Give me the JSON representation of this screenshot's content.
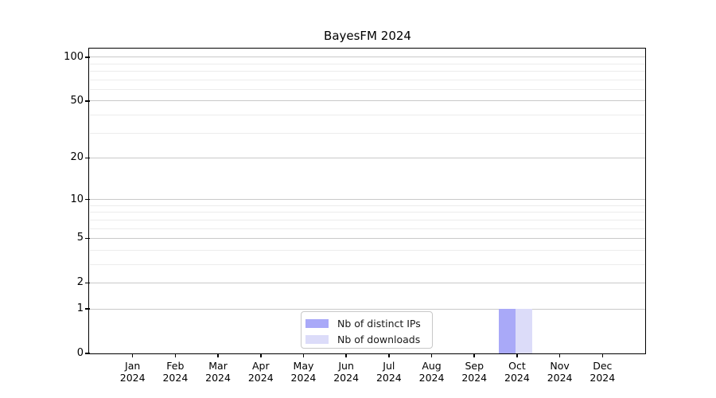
{
  "chart_data": {
    "type": "bar",
    "title": "BayesFM 2024",
    "categories": [
      "Jan",
      "Feb",
      "Mar",
      "Apr",
      "May",
      "Jun",
      "Jul",
      "Aug",
      "Sep",
      "Oct",
      "Nov",
      "Dec"
    ],
    "x_tick_year": "2024",
    "series": [
      {
        "name": "Nb of distinct IPs",
        "color": "#a9a9f8",
        "values": [
          0,
          0,
          0,
          0,
          0,
          0,
          0,
          0,
          0,
          1,
          0,
          0
        ]
      },
      {
        "name": "Nb of downloads",
        "color": "#dcdcf9",
        "values": [
          0,
          0,
          0,
          0,
          0,
          0,
          0,
          0,
          0,
          1,
          0,
          0
        ]
      }
    ],
    "xlabel": "",
    "ylabel": "",
    "yscale": "log1p",
    "y_ticks": [
      0,
      1,
      2,
      5,
      10,
      20,
      50,
      100
    ],
    "y_minor_gridlines": [
      3,
      4,
      6,
      7,
      8,
      9,
      30,
      40,
      60,
      70,
      80,
      90
    ],
    "ylim": [
      0,
      113
    ],
    "grid": "horizontal",
    "legend_position": "bottom-center"
  }
}
